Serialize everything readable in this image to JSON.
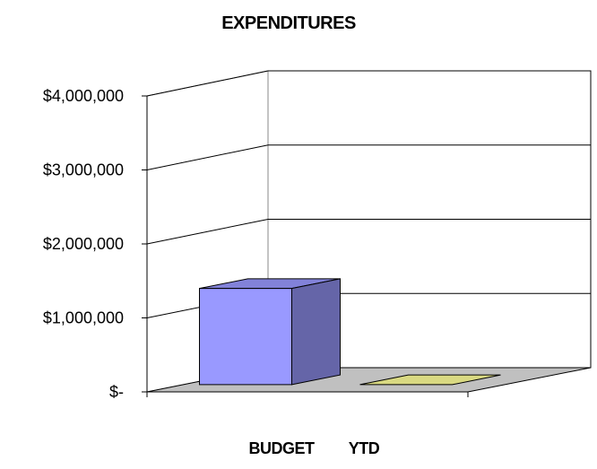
{
  "chart_data": {
    "type": "bar",
    "title": "EXPENDITURES",
    "categories": [
      "BUDGET",
      "YTD"
    ],
    "series": [
      {
        "values": [
          1300000,
          0
        ],
        "colors": [
          "#9999ff",
          "#ffff99"
        ]
      }
    ],
    "y_tick_labels": [
      "$-",
      "$1,000,000",
      "$2,000,000",
      "$3,000,000",
      "$4,000,000"
    ],
    "ylim": [
      0,
      4000000
    ],
    "grid": true,
    "legend": "none",
    "style": "3d"
  }
}
